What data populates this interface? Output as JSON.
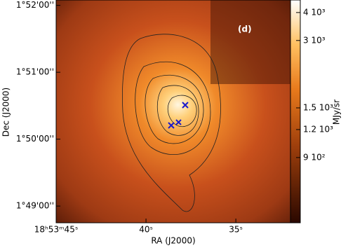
{
  "chart_data": {
    "type": "image",
    "title": "(d)",
    "xlabel": "RA (J2000)",
    "ylabel": "Dec (J2000)",
    "colorbar_label": "MJy/sr",
    "xlim": [
      45,
      31.96
    ],
    "xticks": [
      {
        "value": 45,
        "label": "18ʰ53ᵐ45ˢ"
      },
      {
        "value": 40,
        "label": "40ˢ"
      },
      {
        "value": 35,
        "label": "35ˢ"
      }
    ],
    "ylim": [
      108.75,
      112.08
    ],
    "yticks": [
      {
        "value": 112,
        "label": "1°52'00''"
      },
      {
        "value": 111,
        "label": "1°51'00''"
      },
      {
        "value": 110,
        "label": "1°50'00''"
      },
      {
        "value": 109,
        "label": "1°49'00''"
      }
    ],
    "clim": [
      460,
      4550
    ],
    "color_log": true,
    "cticks": [
      {
        "value": 4000,
        "label": "4 10³"
      },
      {
        "value": 3000,
        "label": "3 10³"
      },
      {
        "value": 1500,
        "label": "1.5 10³"
      },
      {
        "value": 1200,
        "label": "1.2 10³"
      },
      {
        "value": 900,
        "label": "9 10²"
      }
    ]
  }
}
